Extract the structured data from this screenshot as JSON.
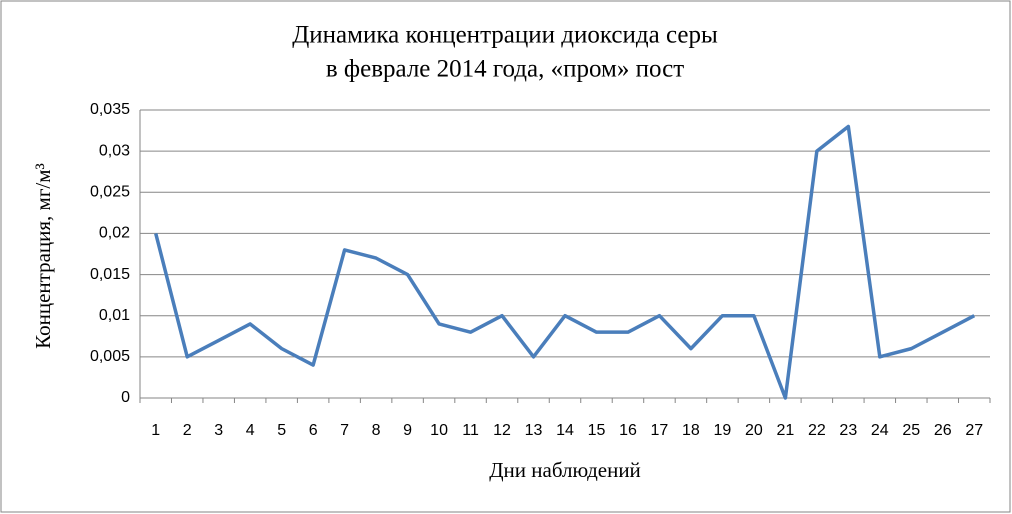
{
  "chart_data": {
    "type": "line",
    "title": "Динамика концентрации диоксида серы",
    "subtitle": "в феврале 2014 года, «пром» пост",
    "x_label": "Дни наблюдений",
    "y_label": "Концентрация, мг/м³",
    "categories": [
      "1",
      "2",
      "3",
      "4",
      "5",
      "6",
      "7",
      "8",
      "9",
      "10",
      "11",
      "12",
      "13",
      "14",
      "15",
      "16",
      "17",
      "18",
      "19",
      "20",
      "21",
      "22",
      "23",
      "24",
      "25",
      "26",
      "27"
    ],
    "series": [
      {
        "name": "Концентрация",
        "color": "#4a7ebb",
        "values": [
          0.02,
          0.005,
          0.007,
          0.009,
          0.006,
          0.004,
          0.018,
          0.017,
          0.015,
          0.009,
          0.008,
          0.01,
          0.005,
          0.01,
          0.008,
          0.008,
          0.01,
          0.006,
          0.01,
          0.01,
          0,
          0.03,
          0.033,
          0.005,
          0.006,
          0.008,
          0.01
        ]
      }
    ],
    "ylim": [
      0,
      0.035
    ],
    "yticks": [
      0,
      {
        "value": 0.005,
        "label": "0,005"
      },
      {
        "value": 0.01,
        "label": "0,01"
      },
      {
        "value": 0.015,
        "label": "0,015"
      },
      {
        "value": 0.02,
        "label": "0,02"
      },
      {
        "value": 0.025,
        "label": "0,025"
      },
      {
        "value": 0.03,
        "label": "0,03"
      },
      {
        "value": 0.035,
        "label": "0,035"
      }
    ],
    "grid": true
  }
}
